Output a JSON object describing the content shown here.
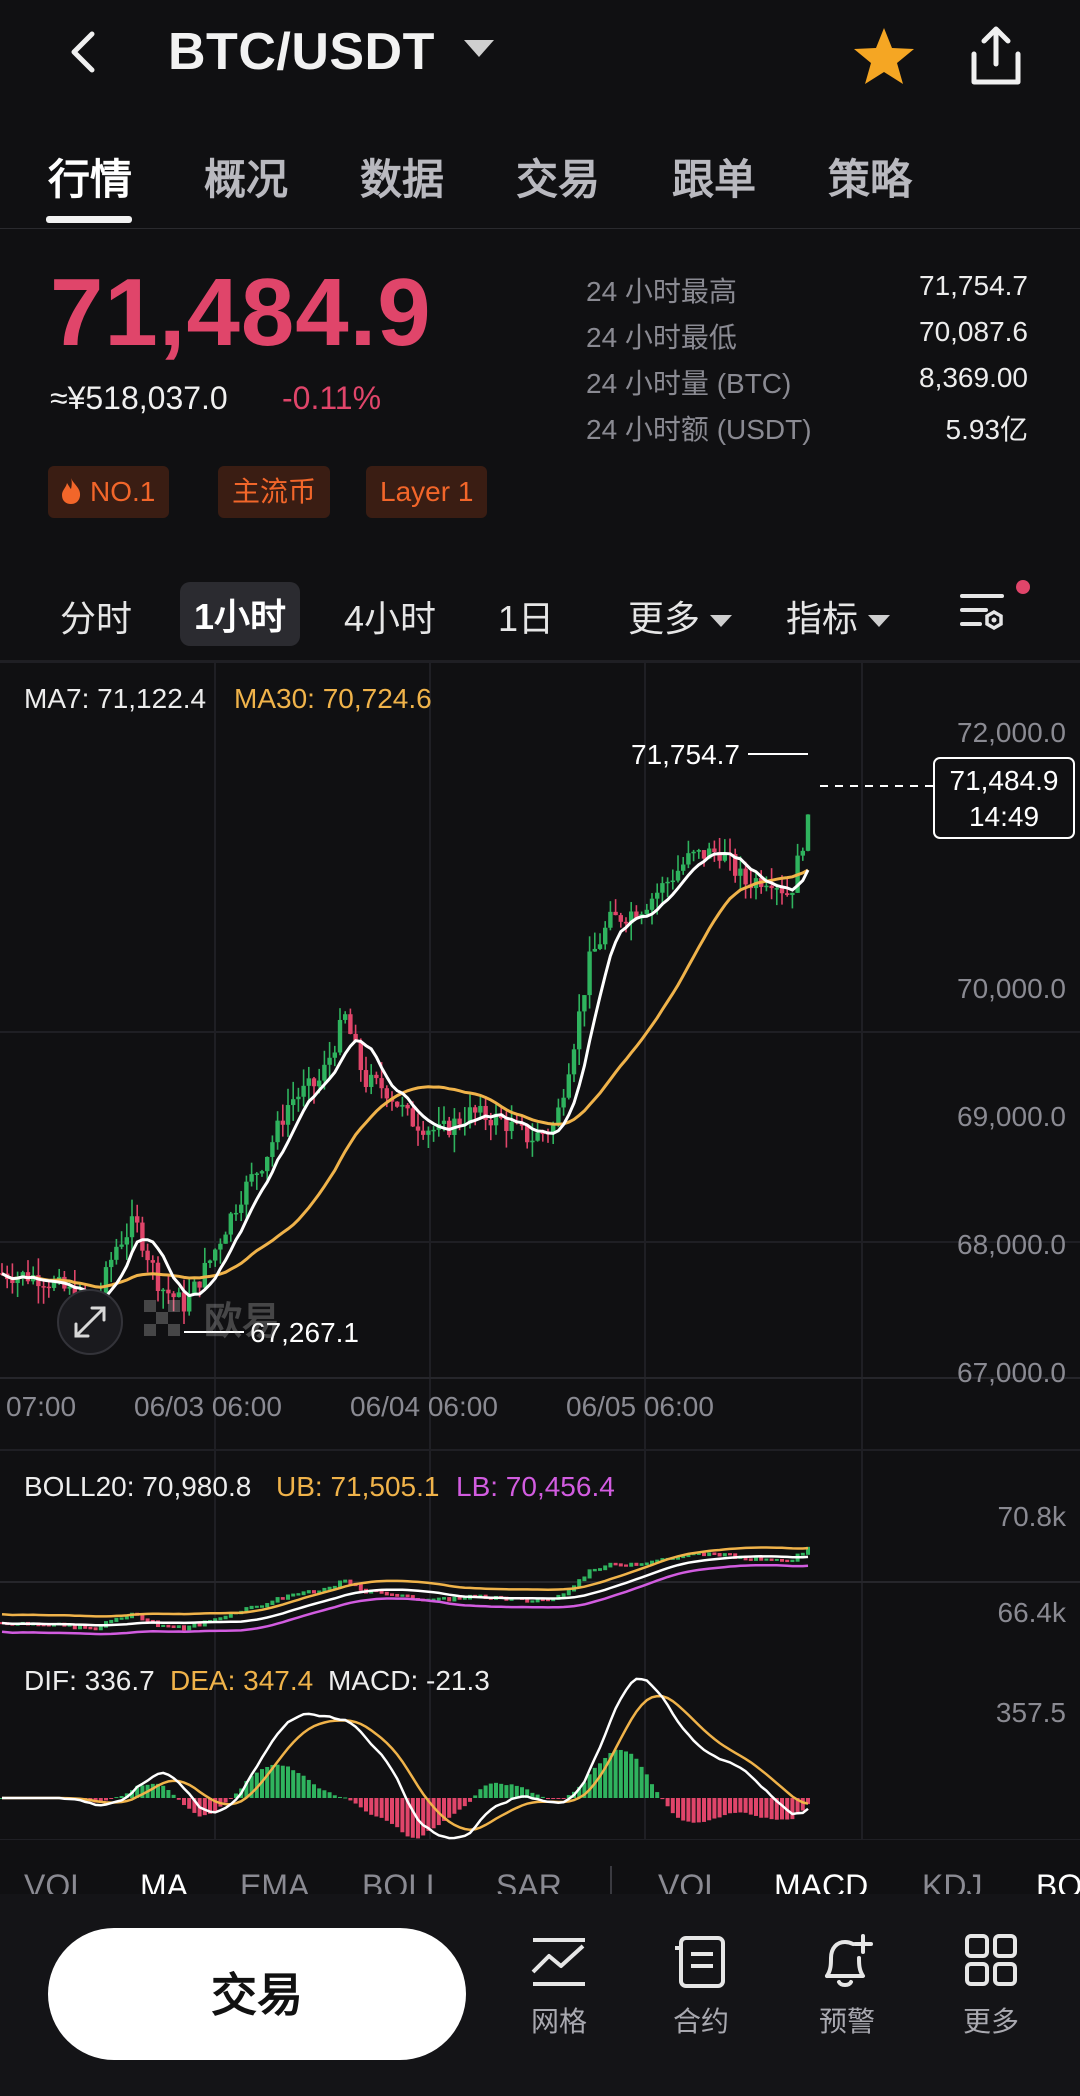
{
  "header": {
    "pair": "BTC/USDT"
  },
  "tabs": [
    "行情",
    "概况",
    "数据",
    "交易",
    "跟单",
    "策略"
  ],
  "ticker": {
    "price": "71,484.9",
    "cny": "≈¥518,037.0",
    "change": "-0.11%",
    "stats": [
      {
        "label": "24 小时最高",
        "value": "71,754.7"
      },
      {
        "label": "24 小时最低",
        "value": "70,087.6"
      },
      {
        "label": "24 小时量 (BTC)",
        "value": "8,369.00"
      },
      {
        "label": "24 小时额 (USDT)",
        "value": "5.93亿"
      }
    ],
    "tags": [
      "NO.1",
      "主流币",
      "Layer 1"
    ]
  },
  "intervals": {
    "items": [
      "分时",
      "1小时",
      "4小时",
      "1日"
    ],
    "active": "1小时",
    "more": "更多",
    "indicator": "指标"
  },
  "chart": {
    "ma7": "MA7: 71,122.4",
    "ma30": "MA30: 70,724.6",
    "y_labels": [
      "72,000.0",
      "70,000.0",
      "69,000.0",
      "68,000.0",
      "67,000.0"
    ],
    "high_marker": "71,754.7",
    "low_marker": "67,267.1",
    "last_price": "71,484.9",
    "countdown": "14:49",
    "x_labels": [
      "07:00",
      "06/03 06:00",
      "06/04 06:00",
      "06/05 06:00"
    ],
    "watermark": "欧易",
    "boll": {
      "mid": "BOLL20: 70,980.8",
      "ub": "UB: 71,505.1",
      "lb": "LB: 70,456.4",
      "top": "70.8k",
      "bottom": "66.4k"
    },
    "macd": {
      "dif": "DIF: 336.7",
      "dea": "DEA: 347.4",
      "macd": "MACD: -21.3",
      "top": "357.5"
    },
    "colors": {
      "up": "#2fb35e",
      "down": "#e0456a",
      "ma7": "#ffffff",
      "ma30": "#f0b34a",
      "lb": "#d25ce0"
    }
  },
  "indicator_tabs": [
    "VOL",
    "MA",
    "EMA",
    "BOLL",
    "SAR",
    "VOL",
    "MACD",
    "KDJ",
    "BO"
  ],
  "bottom": {
    "trade": "交易",
    "items": [
      {
        "label": "网格",
        "icon": "grid-chart-icon"
      },
      {
        "label": "合约",
        "icon": "contract-icon"
      },
      {
        "label": "预警",
        "icon": "bell-plus-icon"
      },
      {
        "label": "更多",
        "icon": "apps-icon"
      }
    ]
  }
}
